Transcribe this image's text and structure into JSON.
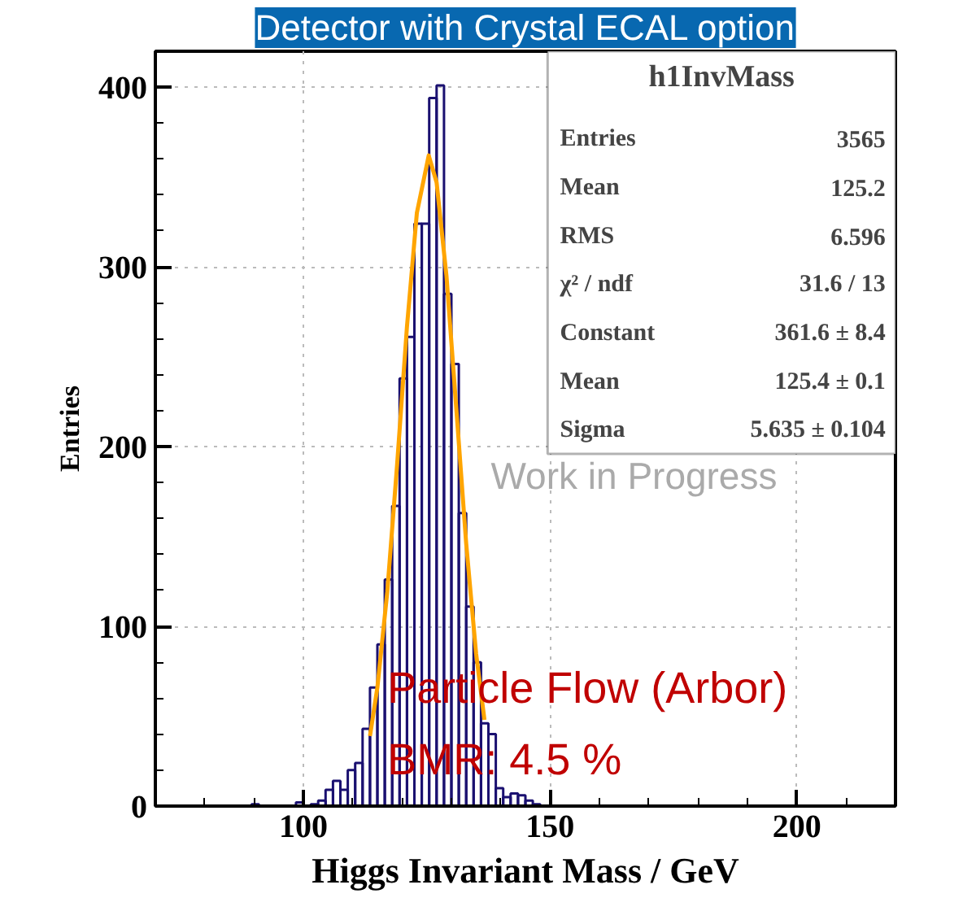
{
  "chart_data": {
    "type": "histogram",
    "title": "Detector with Crystal ECAL option",
    "xlabel": "Higgs Invariant Mass / GeV",
    "ylabel": "Entries",
    "xlim": [
      70,
      220
    ],
    "ylim": [
      0,
      420
    ],
    "xticks": [
      100,
      150,
      200
    ],
    "yticks": [
      0,
      100,
      200,
      300,
      400
    ],
    "grid": true,
    "series": [
      {
        "color": "#1a1070",
        "bins": [
          70,
          71.5,
          73,
          74.5,
          76,
          77.5,
          79,
          80.5,
          82,
          83.5,
          85,
          86.5,
          88,
          89.5,
          91,
          92.5,
          94,
          95.5,
          97,
          98.5,
          100,
          101.5,
          103,
          104.5,
          106,
          107.5,
          109,
          110.5,
          112,
          113.5,
          115,
          116.5,
          118,
          119.5,
          121,
          122.5,
          124,
          125.5,
          127,
          128.5,
          130,
          131.5,
          133,
          134.5,
          136,
          137.5,
          139,
          140.5,
          142,
          143.5,
          145,
          146.5,
          148,
          149.5,
          151,
          152.5,
          154,
          155.5,
          157,
          158.5,
          160,
          161.5,
          163,
          164.5,
          166,
          167.5,
          169,
          170.5,
          172,
          173.5,
          175,
          176.5,
          178,
          179.5,
          181,
          182.5,
          184,
          185.5,
          187,
          188.5,
          190,
          191.5,
          193,
          194.5,
          196,
          197.5,
          199,
          200.5,
          202,
          203.5,
          205,
          206.5,
          208,
          209.5,
          211,
          212.5,
          214,
          215.5,
          217,
          218.5,
          220
        ],
        "values": [
          0,
          0,
          0,
          0,
          0,
          0,
          0,
          0,
          0,
          0,
          0,
          0,
          0,
          1,
          0,
          0,
          0,
          0,
          0,
          2,
          0,
          1,
          3,
          9,
          14,
          9,
          20,
          24,
          43,
          66,
          90,
          126,
          167,
          238,
          261,
          324,
          324,
          394,
          401,
          285,
          246,
          163,
          111,
          80,
          46,
          40,
          10,
          5,
          7,
          6,
          3,
          1,
          0,
          0,
          0,
          0,
          0,
          0,
          0,
          0,
          0,
          0,
          0,
          0,
          0,
          0,
          0,
          0,
          0,
          0,
          0,
          0,
          0,
          0,
          0,
          0,
          0,
          0,
          0,
          0,
          0,
          0,
          0,
          0,
          0,
          0,
          0,
          0,
          0,
          0,
          0,
          0,
          0,
          0,
          0,
          0,
          0,
          0,
          0,
          0
        ]
      },
      {
        "type": "line",
        "color": "#ffa500",
        "x": [
          113.5,
          115,
          117,
          119,
          121,
          123,
          125.4,
          127,
          129,
          131,
          133,
          135,
          136.7
        ],
        "values": [
          39,
          66,
          119,
          190,
          267,
          330,
          362,
          347,
          295,
          221,
          146,
          85,
          48
        ]
      }
    ],
    "annotations": [
      "h1InvMass",
      "Entries",
      "3565",
      "Mean",
      "125.2",
      "RMS",
      "6.596",
      "χ² / ndf",
      "31.6 / 13",
      "Constant",
      "361.6 ± 8.4",
      "Mean",
      "125.4 ± 0.1",
      "Sigma",
      "5.635 ± 0.104",
      "Work in Progress",
      "Particle Flow (Arbor)",
      "BMR: 4.5 %"
    ]
  }
}
